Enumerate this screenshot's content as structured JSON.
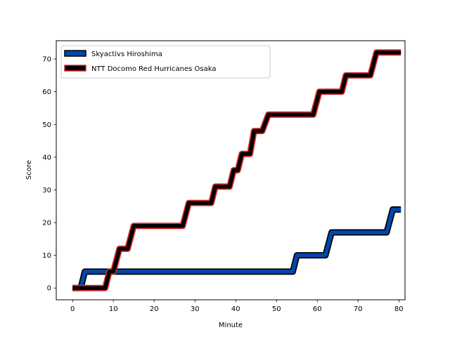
{
  "chart_data": {
    "type": "line",
    "xlabel": "Minute",
    "ylabel": "Score",
    "xlim": [
      -4,
      81.5
    ],
    "ylim": [
      -3.6,
      75.6
    ],
    "xticks": [
      0,
      10,
      20,
      30,
      40,
      50,
      60,
      70,
      80
    ],
    "yticks": [
      0,
      10,
      20,
      30,
      40,
      50,
      60,
      70
    ],
    "grid": false,
    "legend_position": "top-left",
    "series": [
      {
        "name": "Skyactivs Hiroshima",
        "color": "#0047ab",
        "edge_color": "#000000",
        "x": [
          0,
          2,
          3,
          54,
          55,
          62,
          63.5,
          77,
          78.5,
          80.5
        ],
        "y": [
          0,
          0,
          5,
          5,
          10,
          10,
          17,
          17,
          24,
          24
        ]
      },
      {
        "name": "NTT Docomo Red Hurricanes Osaka",
        "color": "#000000",
        "edge_color": "#d62728",
        "x": [
          0,
          8,
          9,
          10,
          11.5,
          13.5,
          15,
          27,
          28.5,
          34,
          35,
          38.5,
          39.5,
          40.5,
          41.5,
          43.5,
          44.5,
          46.5,
          48,
          49,
          59,
          60.5,
          66,
          67,
          73,
          74.5,
          80.5
        ],
        "y": [
          0,
          0,
          5,
          5,
          12,
          12,
          19,
          19,
          26,
          26,
          31,
          31,
          36,
          36,
          41,
          41,
          48,
          48,
          53,
          53,
          53,
          60,
          60,
          65,
          65,
          72,
          72
        ]
      }
    ]
  }
}
